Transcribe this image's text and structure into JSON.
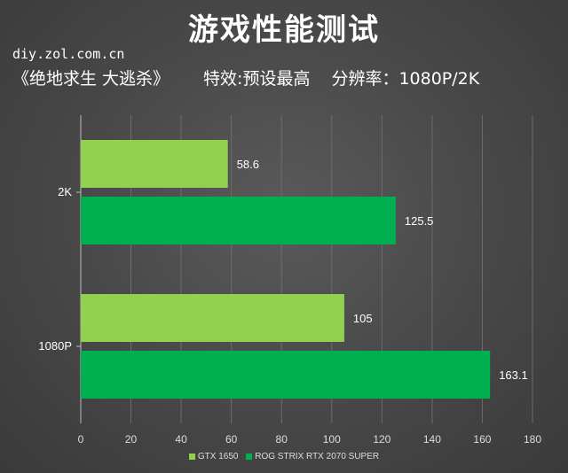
{
  "header": {
    "title": "游戏性能测试",
    "site": "diy.zol.com.cn",
    "game": "《绝地求生 大逃杀》",
    "effects": "特效:预设最高",
    "resolution": "分辨率：1080P/2K"
  },
  "chart_data": {
    "type": "bar",
    "orientation": "horizontal",
    "categories": [
      "2K",
      "1080P"
    ],
    "series": [
      {
        "name": "GTX 1650",
        "color": "#92d050",
        "values": [
          58.6,
          105
        ]
      },
      {
        "name": "ROG STRIX RTX 2070 SUPER",
        "color": "#00b050",
        "values": [
          125.5,
          163.1
        ]
      }
    ],
    "value_labels": [
      [
        "58.6",
        "105"
      ],
      [
        "125.5",
        "163.1"
      ]
    ],
    "xlim": [
      0,
      180
    ],
    "xticks": [
      0,
      20,
      40,
      60,
      80,
      100,
      120,
      140,
      160,
      180
    ],
    "grid": true,
    "legend_position": "bottom"
  }
}
